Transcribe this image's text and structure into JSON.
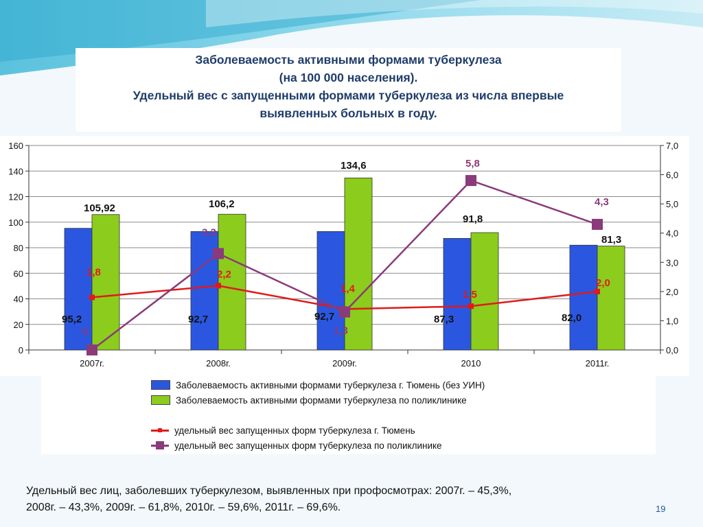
{
  "title": {
    "line1": "Заболеваемость активными формами туберкулеза",
    "line2": "(на 100 000 населения).",
    "line3": "Удельный вес с запущенными формами туберкулеза из числа впервые",
    "line4": "выявленных больных в году."
  },
  "chart_data": {
    "type": "bar",
    "categories": [
      "2007г.",
      "2008г.",
      "2009г.",
      "2010",
      "2011г."
    ],
    "left_axis": {
      "min": 0,
      "max": 160,
      "ticks": [
        "0",
        "20",
        "40",
        "60",
        "80",
        "100",
        "120",
        "140",
        "160"
      ]
    },
    "right_axis": {
      "min": 0,
      "max": 7,
      "ticks": [
        "0,0",
        "1,0",
        "2,0",
        "3,0",
        "4,0",
        "5,0",
        "6,0",
        "7,0"
      ]
    },
    "bar_series": [
      {
        "name": "Заболеваемость активными формами туберкулеза г. Тюмень (без УИН)",
        "color": "#2b57e0",
        "values": [
          95.2,
          92.7,
          92.7,
          87.3,
          82.0
        ],
        "labels": [
          "95,2",
          "92,7",
          "92,7",
          "87,3",
          "82,0"
        ]
      },
      {
        "name": "Заболеваемость активными формами туберкулеза по поликлинике",
        "color": "#8ccc1c",
        "values": [
          105.92,
          106.2,
          134.6,
          91.8,
          81.3
        ],
        "labels": [
          "105,92",
          "106,2",
          "134,6",
          "91,8",
          "81,3"
        ]
      }
    ],
    "line_series": [
      {
        "name": "удельный вес запущенных форм туберкулеза  г. Тюмень",
        "color": "#e01a1a",
        "axis": "right",
        "values": [
          1.8,
          2.2,
          1.4,
          1.5,
          2.0
        ],
        "labels": [
          "1,8",
          "2,2",
          "1,4",
          "1,5",
          "2,0"
        ]
      },
      {
        "name": "удельный вес запущенных форм туберкулеза по поликлинике",
        "color": "#8b3a7a",
        "axis": "right",
        "values": [
          0,
          3.3,
          1.3,
          5.8,
          4.3
        ],
        "labels": [
          "0",
          "3,3",
          "1,3",
          "5,8",
          "4,3"
        ]
      }
    ],
    "grid": true,
    "legend_position": "bottom"
  },
  "footnote": {
    "line1": "Удельный вес лиц, заболевших туберкулезом, выявленных при профосмотрах: 2007г. – 45,3%,",
    "line2": "2008г. – 43,3%, 2009г. – 61,8%, 2010г. – 59,6%, 2011г. – 69,6%."
  },
  "slide_number": "19"
}
